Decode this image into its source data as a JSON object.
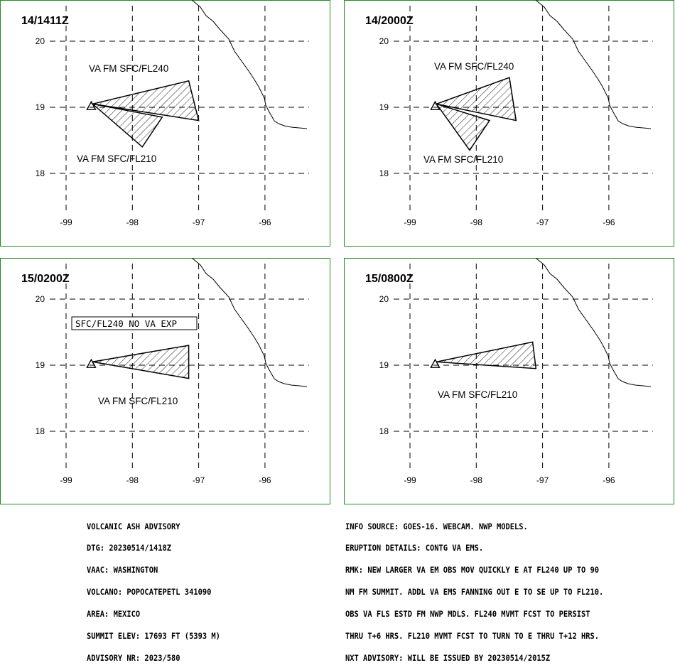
{
  "panels": [
    {
      "time": "14/1411Z",
      "lat_labels": [
        "20",
        "19",
        "18"
      ],
      "lon_labels": [
        "-99",
        "-98",
        "-97",
        "-96"
      ],
      "labels": [
        "VA FM SFC/FL240",
        "VA FM SFC/FL210"
      ],
      "ash_polygons": [
        [
          [
            -98.6,
            19.05
          ],
          [
            -97.15,
            19.4
          ],
          [
            -97.0,
            18.8
          ]
        ],
        [
          [
            -98.6,
            19.05
          ],
          [
            -97.55,
            18.85
          ],
          [
            -97.85,
            18.4
          ]
        ]
      ]
    },
    {
      "time": "14/2000Z",
      "lat_labels": [
        "20",
        "19",
        "18"
      ],
      "lon_labels": [
        "-99",
        "-98",
        "-97",
        "-96"
      ],
      "labels": [
        "VA FM SFC/FL240",
        "VA FM SFC/FL210"
      ],
      "ash_polygons": [
        [
          [
            -98.6,
            19.05
          ],
          [
            -97.5,
            19.45
          ],
          [
            -97.4,
            18.8
          ]
        ],
        [
          [
            -98.6,
            19.05
          ],
          [
            -97.8,
            18.8
          ],
          [
            -98.1,
            18.35
          ]
        ]
      ]
    },
    {
      "time": "15/0200Z",
      "lat_labels": [
        "20",
        "19",
        "18"
      ],
      "lon_labels": [
        "-99",
        "-98",
        "-97",
        "-96"
      ],
      "labels": [
        "VA FM SFC/FL210"
      ],
      "boxed_label": "SFC/FL240 NO VA EXP",
      "ash_polygons": [
        [
          [
            -98.6,
            19.05
          ],
          [
            -97.15,
            19.3
          ],
          [
            -97.15,
            18.8
          ]
        ]
      ]
    },
    {
      "time": "15/0800Z",
      "lat_labels": [
        "20",
        "19",
        "18"
      ],
      "lon_labels": [
        "-99",
        "-98",
        "-97",
        "-96"
      ],
      "labels": [
        "VA FM SFC/FL210"
      ],
      "ash_polygons": [
        [
          [
            -98.6,
            19.05
          ],
          [
            -97.15,
            19.35
          ],
          [
            -97.1,
            18.95
          ]
        ]
      ]
    }
  ],
  "advisory": [
    "VOLCANIC ASH ADVISORY",
    "DTG: 20230514/1418Z",
    "VAAC: WASHINGTON",
    "VOLCANO: POPOCATEPETL 341090",
    "AREA: MEXICO",
    "SUMMIT ELEV: 17693 FT (5393 M)",
    "ADVISORY NR: 2023/580"
  ],
  "info": [
    "INFO SOURCE: GOES-16. WEBCAM. NWP MODELS.",
    "ERUPTION DETAILS: CONTG VA EMS.",
    "RMK: NEW LARGER VA EM OBS MOV QUICKLY E AT FL240 UP TO 90",
    "NM FM SUMMIT. ADDL VA EMS FANNING OUT E TO SE UP TO FL210.",
    "OBS VA FLS ESTD FM NWP MDLS. FL240 MVMT FCST TO PERSIST",
    "THRU T+6 HRS. FL210 MVMT FCST TO TURN TO E THRU T+12 HRS.",
    "NXT ADVISORY: WILL BE ISSUED BY 20230514/2015Z"
  ],
  "colors": {
    "border": "#228b22",
    "ink": "#000000"
  }
}
